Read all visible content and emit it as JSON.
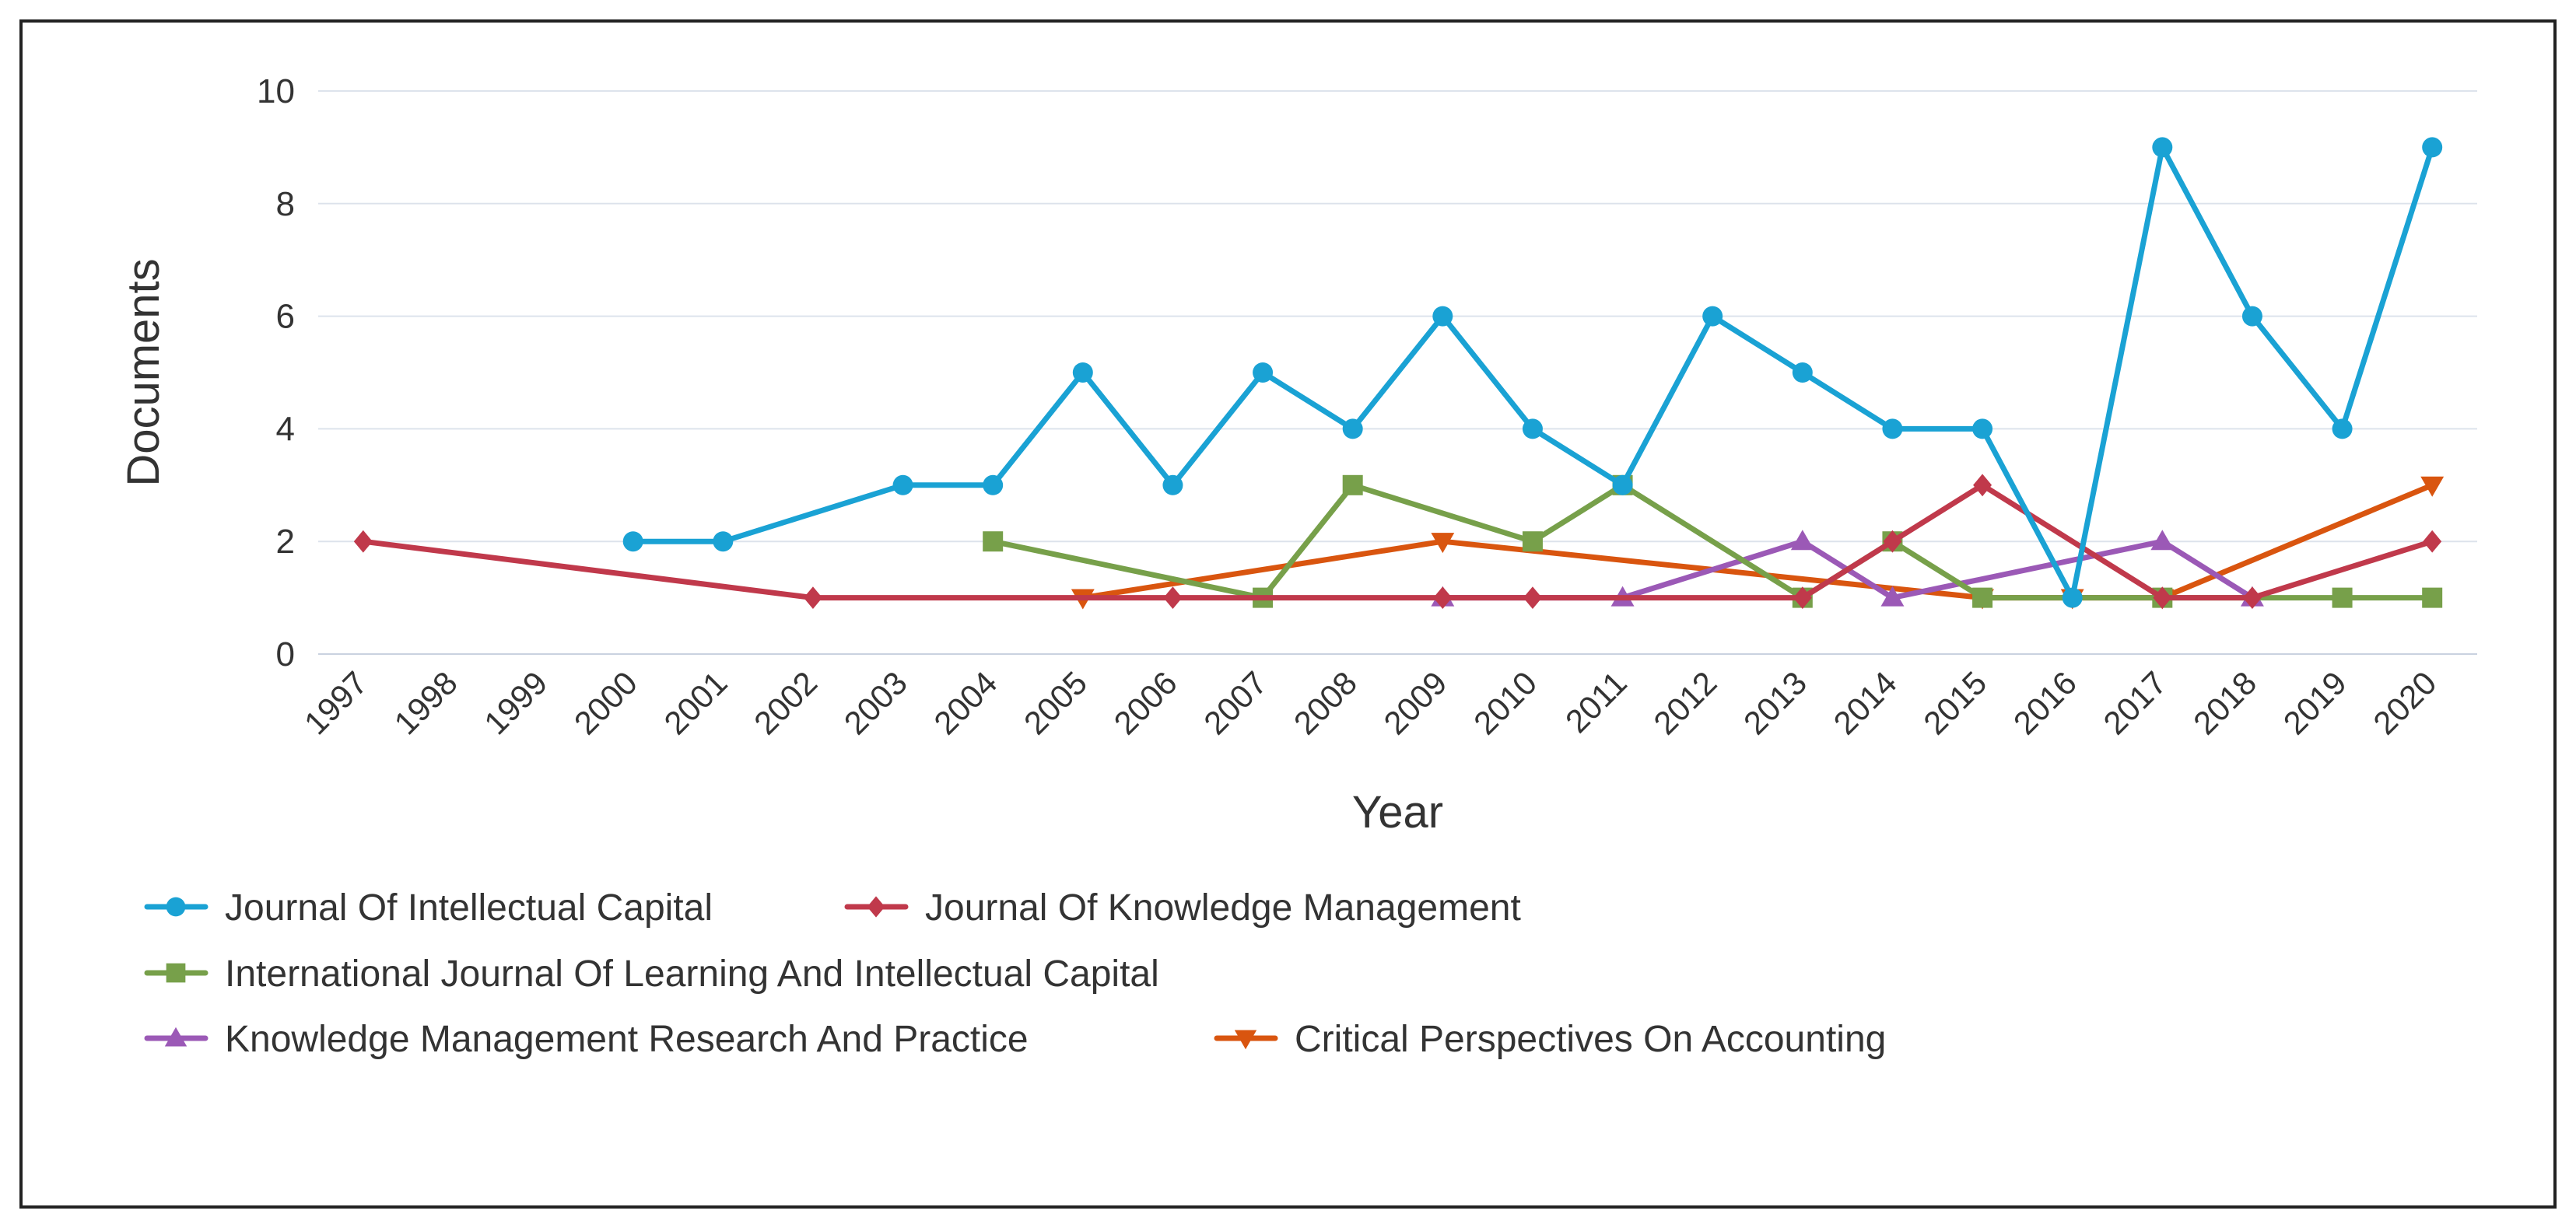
{
  "chart_data": {
    "type": "line",
    "title": "",
    "xlabel": "Year",
    "ylabel": "Documents",
    "categories": [
      "1997",
      "1998",
      "1999",
      "2000",
      "2001",
      "2002",
      "2003",
      "2004",
      "2005",
      "2006",
      "2007",
      "2008",
      "2009",
      "2010",
      "2011",
      "2012",
      "2013",
      "2014",
      "2015",
      "2016",
      "2017",
      "2018",
      "2019",
      "2020"
    ],
    "ylim": [
      0,
      10
    ],
    "yticks": [
      "0",
      "2",
      "4",
      "6",
      "8",
      "10"
    ],
    "grid": true,
    "legend_position": "bottom-left",
    "series": [
      {
        "name": "Journal Of Intellectual Capital",
        "color": "#1aa2d4",
        "marker": "circle",
        "points": [
          {
            "x": "2000",
            "y": 2
          },
          {
            "x": "2001",
            "y": 2
          },
          {
            "x": "2003",
            "y": 3
          },
          {
            "x": "2004",
            "y": 3
          },
          {
            "x": "2005",
            "y": 5
          },
          {
            "x": "2006",
            "y": 3
          },
          {
            "x": "2007",
            "y": 5
          },
          {
            "x": "2008",
            "y": 4
          },
          {
            "x": "2009",
            "y": 6
          },
          {
            "x": "2010",
            "y": 4
          },
          {
            "x": "2011",
            "y": 3
          },
          {
            "x": "2012",
            "y": 6
          },
          {
            "x": "2013",
            "y": 5
          },
          {
            "x": "2014",
            "y": 4
          },
          {
            "x": "2015",
            "y": 4
          },
          {
            "x": "2016",
            "y": 1
          },
          {
            "x": "2017",
            "y": 9
          },
          {
            "x": "2018",
            "y": 6
          },
          {
            "x": "2019",
            "y": 4
          },
          {
            "x": "2020",
            "y": 9
          }
        ]
      },
      {
        "name": "Journal Of Knowledge Management",
        "color": "#c0394b",
        "marker": "diamond",
        "points": [
          {
            "x": "1997",
            "y": 2
          },
          {
            "x": "2002",
            "y": 1
          },
          {
            "x": "2006",
            "y": 1
          },
          {
            "x": "2009",
            "y": 1
          },
          {
            "x": "2010",
            "y": 1
          },
          {
            "x": "2013",
            "y": 1
          },
          {
            "x": "2014",
            "y": 2
          },
          {
            "x": "2015",
            "y": 3
          },
          {
            "x": "2017",
            "y": 1
          },
          {
            "x": "2018",
            "y": 1
          },
          {
            "x": "2020",
            "y": 2
          }
        ]
      },
      {
        "name": "International Journal Of Learning And Intellectual Capital",
        "color": "#77a04a",
        "marker": "square",
        "points": [
          {
            "x": "2004",
            "y": 2
          },
          {
            "x": "2007",
            "y": 1
          },
          {
            "x": "2008",
            "y": 3
          },
          {
            "x": "2010",
            "y": 2
          },
          {
            "x": "2011",
            "y": 3
          },
          {
            "x": "2013",
            "y": 1
          },
          {
            "x": "2014",
            "y": 2
          },
          {
            "x": "2015",
            "y": 1
          },
          {
            "x": "2017",
            "y": 1
          },
          {
            "x": "2019",
            "y": 1
          },
          {
            "x": "2020",
            "y": 1
          }
        ]
      },
      {
        "name": "Knowledge Management Research And Practice",
        "color": "#9b59b6",
        "marker": "triangle-up",
        "points": [
          {
            "x": "2009",
            "y": 1
          },
          {
            "x": "2011",
            "y": 1
          },
          {
            "x": "2013",
            "y": 2
          },
          {
            "x": "2014",
            "y": 1
          },
          {
            "x": "2017",
            "y": 2
          },
          {
            "x": "2018",
            "y": 1
          }
        ]
      },
      {
        "name": "Critical Perspectives On Accounting",
        "color": "#d9550f",
        "marker": "triangle-down",
        "points": [
          {
            "x": "2005",
            "y": 1
          },
          {
            "x": "2009",
            "y": 2
          },
          {
            "x": "2015",
            "y": 1
          },
          {
            "x": "2016",
            "y": 1
          },
          {
            "x": "2017",
            "y": 1
          },
          {
            "x": "2020",
            "y": 3
          }
        ]
      }
    ]
  }
}
